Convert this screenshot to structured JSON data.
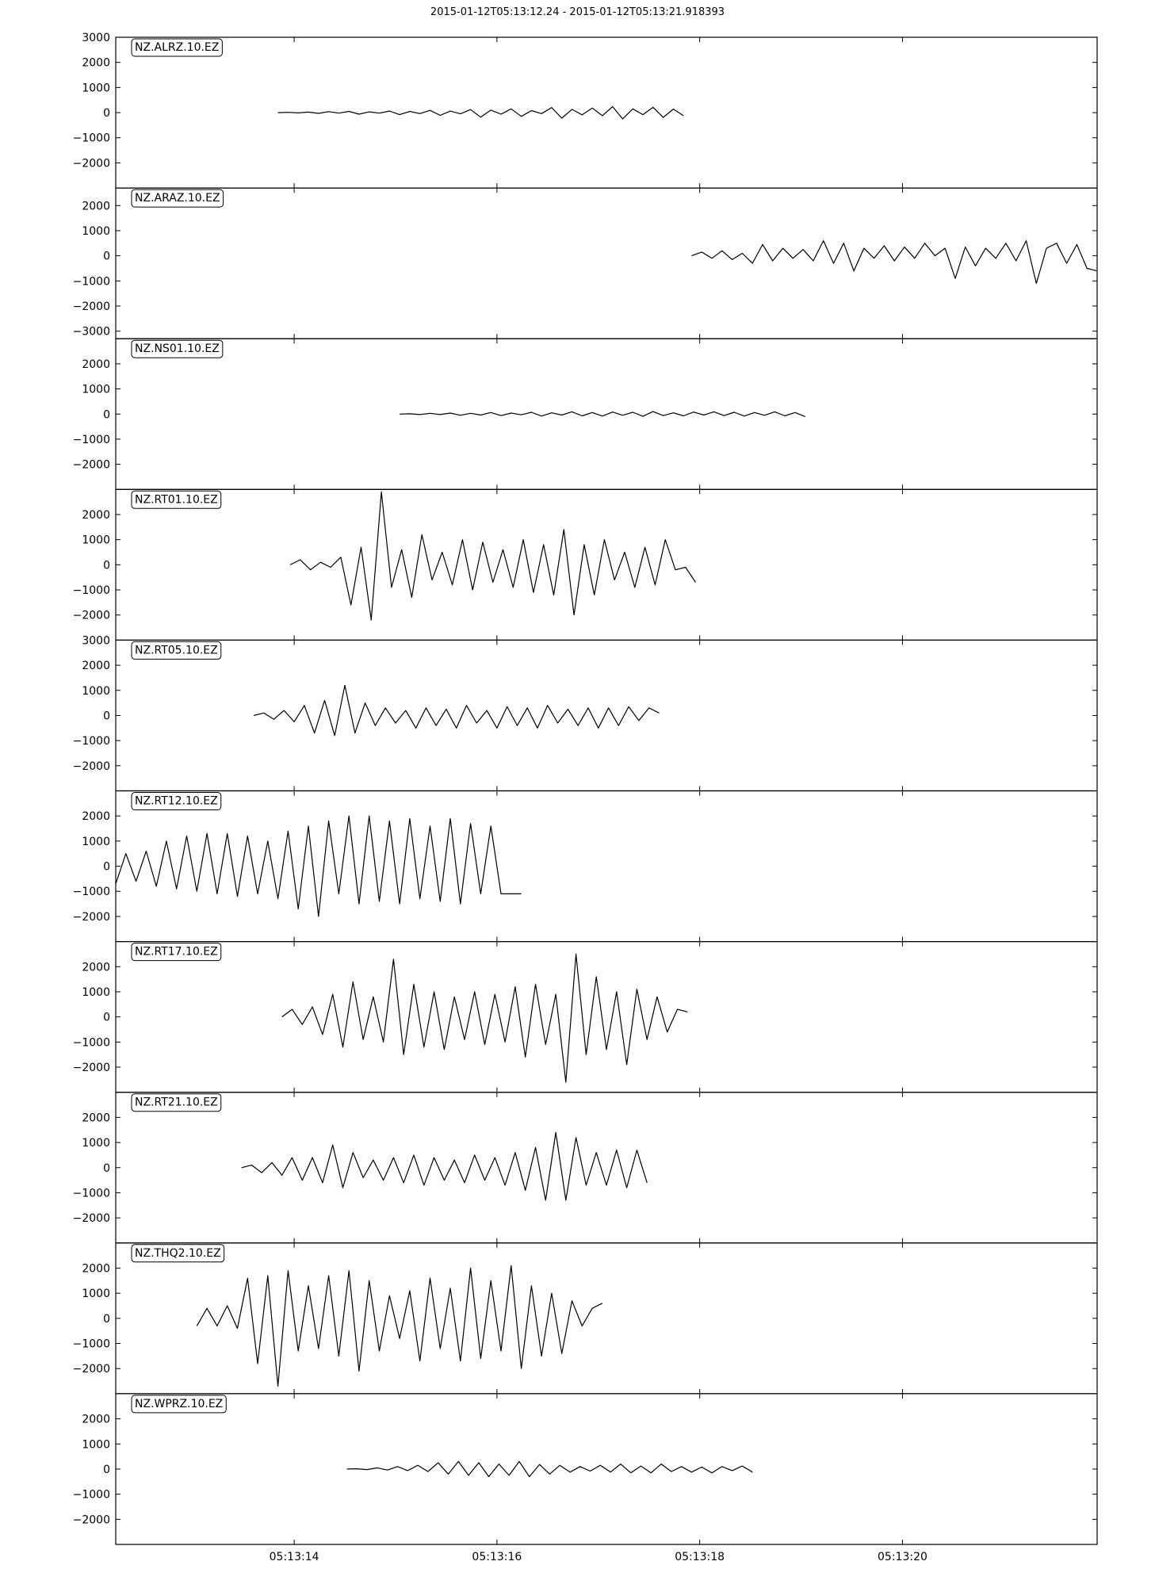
{
  "title": "2015-01-12T05:13:12.24  -  2015-01-12T05:13:21.918393",
  "chart_data": {
    "type": "line",
    "title": "2015-01-12T05:13:12.24  -  2015-01-12T05:13:21.918393",
    "x_unit": "seconds after 05:13:12.24",
    "xlim": [
      0,
      9.68
    ],
    "x_ticks": [
      {
        "value": 1.76,
        "label": "05:13:14"
      },
      {
        "value": 3.76,
        "label": "05:13:16"
      },
      {
        "value": 5.76,
        "label": "05:13:18"
      },
      {
        "value": 7.76,
        "label": "05:13:20"
      }
    ],
    "panels": [
      {
        "label": "NZ.ALRZ.10.EZ",
        "ylim": [
          -3000,
          3000
        ],
        "y_ticks": [
          3000,
          2000,
          1000,
          0,
          -1000,
          -2000
        ],
        "start": 1.6,
        "end": 5.6,
        "values": [
          0,
          10,
          -10,
          20,
          -30,
          40,
          -20,
          50,
          -60,
          30,
          -20,
          60,
          -80,
          50,
          -40,
          90,
          -110,
          60,
          -50,
          120,
          -180,
          100,
          -60,
          150,
          -150,
          80,
          -40,
          200,
          -220,
          130,
          -90,
          180,
          -120,
          240,
          -250,
          150,
          -80,
          210,
          -190,
          140,
          -120
        ]
      },
      {
        "label": "NZ.ARAZ.10.EZ",
        "ylim": [
          -3300,
          2700
        ],
        "y_ticks": [
          2000,
          1000,
          0,
          -1000,
          -2000,
          -3000
        ],
        "start": 5.68,
        "end": 9.68,
        "values": [
          0,
          150,
          -100,
          200,
          -150,
          100,
          -300,
          450,
          -200,
          300,
          -100,
          250,
          -200,
          600,
          -300,
          500,
          -600,
          300,
          -100,
          400,
          -200,
          350,
          -100,
          500,
          0,
          300,
          -900,
          350,
          -400,
          300,
          -100,
          500,
          -200,
          600,
          -1100,
          300,
          500,
          -300,
          450,
          -500,
          -600
        ]
      },
      {
        "label": "NZ.NS01.10.EZ",
        "ylim": [
          -3000,
          3000
        ],
        "y_ticks": [
          2000,
          1000,
          0,
          -1000,
          -2000
        ],
        "start": 2.8,
        "end": 6.8,
        "values": [
          0,
          10,
          -20,
          30,
          -20,
          40,
          -50,
          30,
          -40,
          60,
          -60,
          40,
          -30,
          70,
          -80,
          50,
          -40,
          90,
          -70,
          60,
          -80,
          80,
          -50,
          70,
          -90,
          100,
          -60,
          50,
          -70,
          80,
          -40,
          90,
          -60,
          70,
          -80,
          60,
          -50,
          90,
          -70,
          60,
          -100
        ]
      },
      {
        "label": "NZ.RT01.10.EZ",
        "ylim": [
          -3000,
          3000
        ],
        "y_ticks": [
          2000,
          1000,
          0,
          -1000,
          -2000
        ],
        "start": 1.72,
        "end": 5.72,
        "values": [
          0,
          200,
          -200,
          100,
          -100,
          300,
          -1600,
          700,
          -2200,
          2900,
          -900,
          600,
          -1300,
          1200,
          -600,
          500,
          -800,
          1000,
          -1000,
          900,
          -700,
          600,
          -900,
          1000,
          -1100,
          800,
          -1200,
          1400,
          -2000,
          800,
          -1200,
          1000,
          -600,
          500,
          -900,
          700,
          -800,
          1000,
          -200,
          -100,
          -700
        ]
      },
      {
        "label": "NZ.RT05.10.EZ",
        "ylim": [
          -3000,
          3000
        ],
        "y_ticks": [
          3000,
          2000,
          1000,
          0,
          -1000,
          -2000
        ],
        "start": 1.36,
        "end": 5.36,
        "values": [
          0,
          100,
          -150,
          200,
          -250,
          400,
          -700,
          600,
          -800,
          1200,
          -700,
          500,
          -400,
          300,
          -300,
          200,
          -500,
          300,
          -400,
          250,
          -500,
          400,
          -300,
          200,
          -500,
          350,
          -400,
          300,
          -500,
          400,
          -300,
          250,
          -400,
          300,
          -500,
          300,
          -400,
          350,
          -200,
          300,
          100
        ]
      },
      {
        "label": "NZ.RT12.10.EZ",
        "ylim": [
          -3000,
          3000
        ],
        "y_ticks": [
          2000,
          1000,
          0,
          -1000,
          -2000
        ],
        "start": 0.0,
        "end": 4.0,
        "values": [
          -700,
          500,
          -600,
          600,
          -800,
          1000,
          -900,
          1200,
          -1000,
          1300,
          -1100,
          1300,
          -1200,
          1200,
          -1100,
          1000,
          -1300,
          1400,
          -1700,
          1600,
          -2000,
          1800,
          -1100,
          2000,
          -1500,
          2000,
          -1400,
          1800,
          -1500,
          1900,
          -1300,
          1600,
          -1400,
          1900,
          -1500,
          1700,
          -1100,
          1600,
          -1100,
          -1100,
          -1100
        ]
      },
      {
        "label": "NZ.RT17.10.EZ",
        "ylim": [
          -3000,
          3000
        ],
        "y_ticks": [
          2000,
          1000,
          0,
          -1000,
          -2000
        ],
        "start": 1.64,
        "end": 5.64,
        "values": [
          0,
          300,
          -300,
          400,
          -700,
          900,
          -1200,
          1400,
          -900,
          800,
          -1000,
          2300,
          -1500,
          1300,
          -1200,
          1000,
          -1300,
          800,
          -900,
          1000,
          -1100,
          900,
          -1000,
          1200,
          -1600,
          1300,
          -1100,
          900,
          -2600,
          2500,
          -1500,
          1600,
          -1300,
          1000,
          -1900,
          1100,
          -900,
          800,
          -600,
          300,
          200
        ]
      },
      {
        "label": "NZ.RT21.10.EZ",
        "ylim": [
          -3000,
          3000
        ],
        "y_ticks": [
          2000,
          1000,
          0,
          -1000,
          -2000
        ],
        "start": 1.24,
        "end": 5.24,
        "values": [
          0,
          100,
          -200,
          200,
          -300,
          400,
          -500,
          400,
          -600,
          900,
          -800,
          600,
          -400,
          300,
          -500,
          400,
          -600,
          500,
          -700,
          400,
          -500,
          300,
          -600,
          500,
          -500,
          400,
          -700,
          600,
          -900,
          800,
          -1300,
          1400,
          -1300,
          1200,
          -700,
          600,
          -700,
          700,
          -800,
          700,
          -600
        ]
      },
      {
        "label": "NZ.THQ2.10.EZ",
        "ylim": [
          -3000,
          3000
        ],
        "y_ticks": [
          2000,
          1000,
          0,
          -1000,
          -2000
        ],
        "start": 0.8,
        "end": 4.8,
        "values": [
          -300,
          400,
          -300,
          500,
          -400,
          1600,
          -1800,
          1700,
          -2700,
          1900,
          -1300,
          1300,
          -1200,
          1700,
          -1500,
          1900,
          -2100,
          1500,
          -1300,
          900,
          -800,
          1100,
          -1700,
          1600,
          -1200,
          1200,
          -1700,
          2000,
          -1600,
          1500,
          -1300,
          2100,
          -2000,
          1300,
          -1500,
          1000,
          -1400,
          700,
          -300,
          400,
          600
        ]
      },
      {
        "label": "NZ.WPRZ.10.EZ",
        "ylim": [
          -3000,
          3000
        ],
        "y_ticks": [
          2000,
          1000,
          0,
          -1000,
          -2000
        ],
        "start": 2.28,
        "end": 6.28,
        "values": [
          0,
          10,
          -20,
          50,
          -40,
          100,
          -60,
          150,
          -100,
          250,
          -200,
          300,
          -250,
          250,
          -300,
          200,
          -250,
          300,
          -300,
          180,
          -200,
          150,
          -120,
          100,
          -80,
          150,
          -120,
          200,
          -150,
          120,
          -150,
          200,
          -100,
          100,
          -120,
          80,
          -150,
          100,
          -60,
          120,
          -120
        ]
      }
    ]
  }
}
